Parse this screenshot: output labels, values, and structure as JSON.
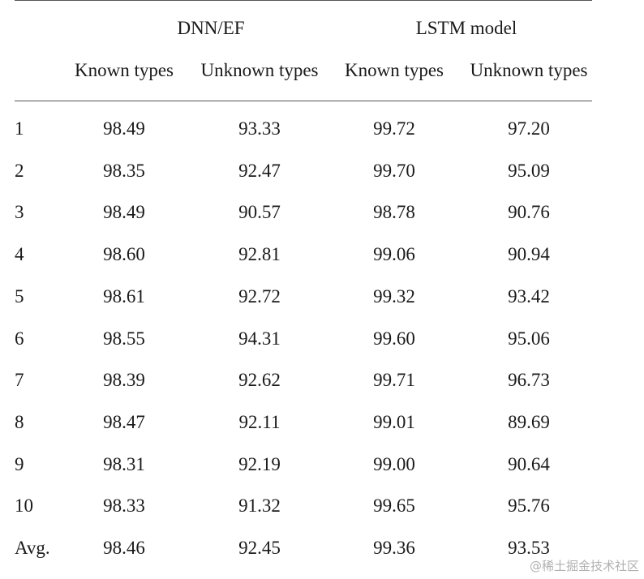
{
  "table": {
    "groups": [
      "DNN/EF",
      "LSTM model"
    ],
    "subheaders": [
      "Known types",
      "Unknown types",
      "Known types",
      "Unknown types"
    ],
    "rows": [
      {
        "label": "1",
        "values": [
          "98.49",
          "93.33",
          "99.72",
          "97.20"
        ]
      },
      {
        "label": "2",
        "values": [
          "98.35",
          "92.47",
          "99.70",
          "95.09"
        ]
      },
      {
        "label": "3",
        "values": [
          "98.49",
          "90.57",
          "98.78",
          "90.76"
        ]
      },
      {
        "label": "4",
        "values": [
          "98.60",
          "92.81",
          "99.06",
          "90.94"
        ]
      },
      {
        "label": "5",
        "values": [
          "98.61",
          "92.72",
          "99.32",
          "93.42"
        ]
      },
      {
        "label": "6",
        "values": [
          "98.55",
          "94.31",
          "99.60",
          "95.06"
        ]
      },
      {
        "label": "7",
        "values": [
          "98.39",
          "92.62",
          "99.71",
          "96.73"
        ]
      },
      {
        "label": "8",
        "values": [
          "98.47",
          "92.11",
          "99.01",
          "89.69"
        ]
      },
      {
        "label": "9",
        "values": [
          "98.31",
          "92.19",
          "99.00",
          "90.64"
        ]
      },
      {
        "label": "10",
        "values": [
          "98.33",
          "91.32",
          "99.65",
          "95.76"
        ]
      },
      {
        "label": "Avg.",
        "values": [
          "98.46",
          "92.45",
          "99.36",
          "93.53"
        ]
      }
    ]
  },
  "watermark": "@稀土掘金技术社区"
}
